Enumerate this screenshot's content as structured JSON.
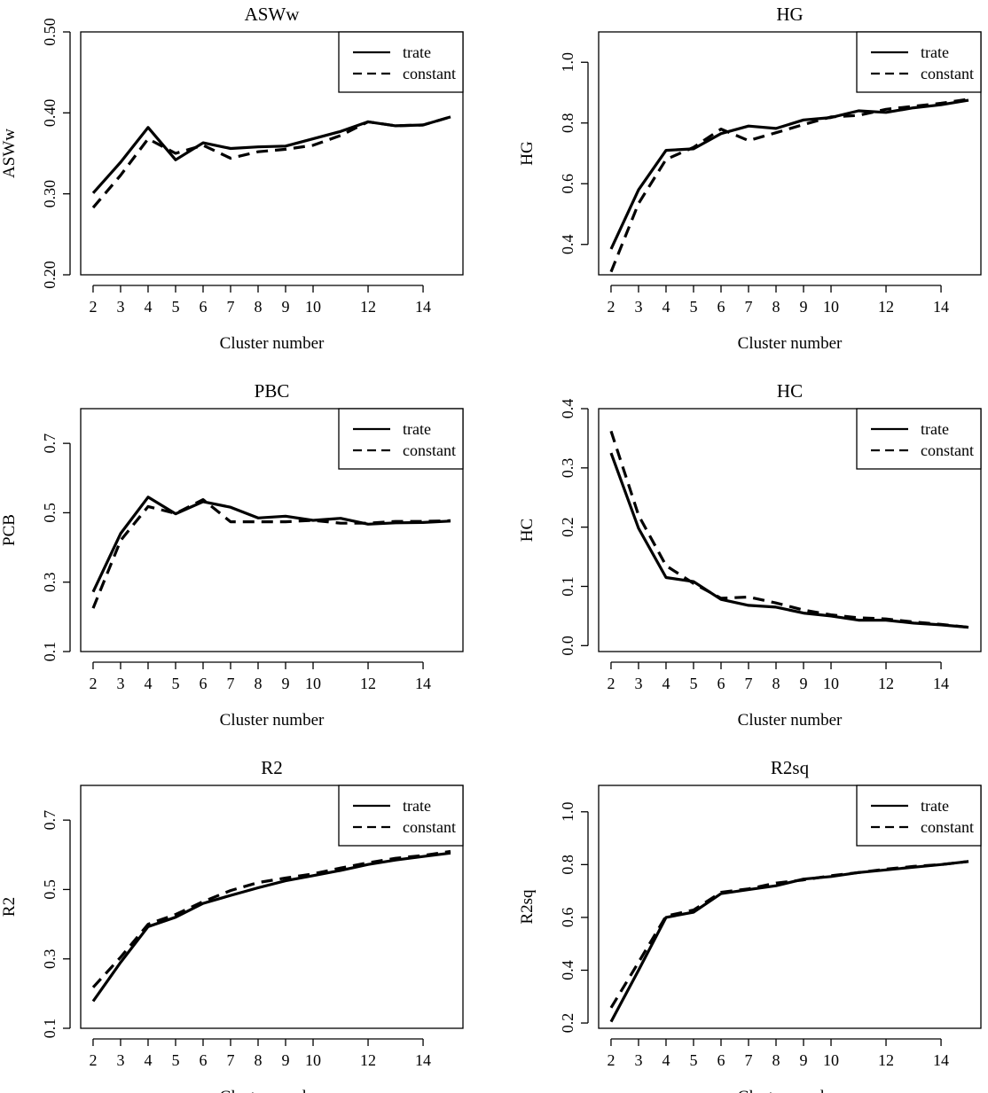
{
  "legend_labels": [
    "trate",
    "constant"
  ],
  "chart_data": [
    {
      "type": "line",
      "title": "ASWw",
      "xlabel": "Cluster number",
      "ylabel": "ASWw",
      "x": [
        2,
        3,
        4,
        5,
        6,
        7,
        8,
        9,
        10,
        11,
        12,
        13,
        14,
        15
      ],
      "xticks": [
        "2",
        "3",
        "4",
        "5",
        "6",
        "7",
        "8",
        "9",
        "10",
        "12",
        "14"
      ],
      "yticks": [
        "0.20",
        "0.30",
        "0.40",
        "0.50"
      ],
      "ylim": [
        0.2,
        0.5
      ],
      "legend": "top-right",
      "series": [
        {
          "name": "trate",
          "style": "solid",
          "values": [
            0.301,
            0.339,
            0.382,
            0.342,
            0.363,
            0.356,
            0.358,
            0.359,
            0.368,
            0.377,
            0.389,
            0.384,
            0.385,
            0.395
          ]
        },
        {
          "name": "constant",
          "style": "dashed",
          "values": [
            0.283,
            0.323,
            0.368,
            0.35,
            0.36,
            0.344,
            0.352,
            0.355,
            0.36,
            0.372,
            0.389,
            0.384,
            0.385,
            0.395
          ]
        }
      ]
    },
    {
      "type": "line",
      "title": "HG",
      "xlabel": "Cluster number",
      "ylabel": "HG",
      "x": [
        2,
        3,
        4,
        5,
        6,
        7,
        8,
        9,
        10,
        11,
        12,
        13,
        14,
        15
      ],
      "xticks": [
        "2",
        "3",
        "4",
        "5",
        "6",
        "7",
        "8",
        "9",
        "10",
        "12",
        "14"
      ],
      "yticks": [
        "0.4",
        "0.6",
        "0.8",
        "1.0"
      ],
      "ylim": [
        0.3,
        1.1
      ],
      "legend": "top-right",
      "series": [
        {
          "name": "trate",
          "style": "solid",
          "values": [
            0.385,
            0.58,
            0.71,
            0.715,
            0.765,
            0.79,
            0.782,
            0.81,
            0.818,
            0.84,
            0.835,
            0.85,
            0.86,
            0.875
          ]
        },
        {
          "name": "constant",
          "style": "dashed",
          "values": [
            0.31,
            0.535,
            0.68,
            0.72,
            0.78,
            0.742,
            0.768,
            0.795,
            0.82,
            0.825,
            0.845,
            0.855,
            0.865,
            0.878
          ]
        }
      ]
    },
    {
      "type": "line",
      "title": "PBC",
      "xlabel": "Cluster number",
      "ylabel": "PCB",
      "x": [
        2,
        3,
        4,
        5,
        6,
        7,
        8,
        9,
        10,
        11,
        12,
        13,
        14,
        15
      ],
      "xticks": [
        "2",
        "3",
        "4",
        "5",
        "6",
        "7",
        "8",
        "9",
        "10",
        "12",
        "14"
      ],
      "yticks": [
        "0.1",
        "0.3",
        "0.5",
        "0.7"
      ],
      "ylim": [
        0.1,
        0.8
      ],
      "legend": "top-right",
      "series": [
        {
          "name": "trate",
          "style": "solid",
          "values": [
            0.272,
            0.44,
            0.545,
            0.497,
            0.532,
            0.516,
            0.485,
            0.49,
            0.478,
            0.484,
            0.467,
            0.471,
            0.472,
            0.476
          ]
        },
        {
          "name": "constant",
          "style": "dashed",
          "values": [
            0.225,
            0.42,
            0.518,
            0.498,
            0.538,
            0.474,
            0.474,
            0.474,
            0.478,
            0.47,
            0.47,
            0.475,
            0.475,
            0.477
          ]
        }
      ]
    },
    {
      "type": "line",
      "title": "HC",
      "xlabel": "Cluster number",
      "ylabel": "HC",
      "x": [
        2,
        3,
        4,
        5,
        6,
        7,
        8,
        9,
        10,
        11,
        12,
        13,
        14,
        15
      ],
      "xticks": [
        "2",
        "3",
        "4",
        "5",
        "6",
        "7",
        "8",
        "9",
        "10",
        "12",
        "14"
      ],
      "yticks": [
        "0.0",
        "0.1",
        "0.2",
        "0.3",
        "0.4"
      ],
      "ylim": [
        -0.01,
        0.4
      ],
      "legend": "top-right",
      "series": [
        {
          "name": "trate",
          "style": "solid",
          "values": [
            0.325,
            0.198,
            0.115,
            0.108,
            0.078,
            0.068,
            0.065,
            0.055,
            0.05,
            0.043,
            0.043,
            0.038,
            0.035,
            0.031
          ]
        },
        {
          "name": "constant",
          "style": "dashed",
          "values": [
            0.362,
            0.22,
            0.135,
            0.105,
            0.08,
            0.082,
            0.072,
            0.06,
            0.052,
            0.047,
            0.045,
            0.04,
            0.036,
            0.031
          ]
        }
      ]
    },
    {
      "type": "line",
      "title": "R2",
      "xlabel": "Cluster number",
      "ylabel": "R2",
      "x": [
        2,
        3,
        4,
        5,
        6,
        7,
        8,
        9,
        10,
        11,
        12,
        13,
        14,
        15
      ],
      "xticks": [
        "2",
        "3",
        "4",
        "5",
        "6",
        "7",
        "8",
        "9",
        "10",
        "12",
        "14"
      ],
      "yticks": [
        "0.1",
        "0.3",
        "0.5",
        "0.7"
      ],
      "ylim": [
        0.1,
        0.8
      ],
      "legend": "top-right",
      "series": [
        {
          "name": "trate",
          "style": "solid",
          "values": [
            0.178,
            0.29,
            0.393,
            0.42,
            0.46,
            0.483,
            0.505,
            0.525,
            0.54,
            0.555,
            0.572,
            0.585,
            0.595,
            0.605
          ]
        },
        {
          "name": "constant",
          "style": "dashed",
          "values": [
            0.218,
            0.305,
            0.4,
            0.428,
            0.465,
            0.497,
            0.52,
            0.533,
            0.545,
            0.562,
            0.577,
            0.59,
            0.598,
            0.61
          ]
        }
      ]
    },
    {
      "type": "line",
      "title": "R2sq",
      "xlabel": "Cluster number",
      "ylabel": "R2sq",
      "x": [
        2,
        3,
        4,
        5,
        6,
        7,
        8,
        9,
        10,
        11,
        12,
        13,
        14,
        15
      ],
      "xticks": [
        "2",
        "3",
        "4",
        "5",
        "6",
        "7",
        "8",
        "9",
        "10",
        "12",
        "14"
      ],
      "yticks": [
        "0.2",
        "0.4",
        "0.6",
        "0.8",
        "1.0"
      ],
      "ylim": [
        0.18,
        1.1
      ],
      "legend": "top-right",
      "series": [
        {
          "name": "trate",
          "style": "solid",
          "values": [
            0.205,
            0.4,
            0.6,
            0.62,
            0.69,
            0.705,
            0.72,
            0.745,
            0.755,
            0.77,
            0.78,
            0.79,
            0.8,
            0.812
          ]
        },
        {
          "name": "constant",
          "style": "dashed",
          "values": [
            0.258,
            0.43,
            0.605,
            0.628,
            0.695,
            0.708,
            0.73,
            0.742,
            0.758,
            0.77,
            0.783,
            0.793,
            0.8,
            0.812
          ]
        }
      ]
    }
  ]
}
